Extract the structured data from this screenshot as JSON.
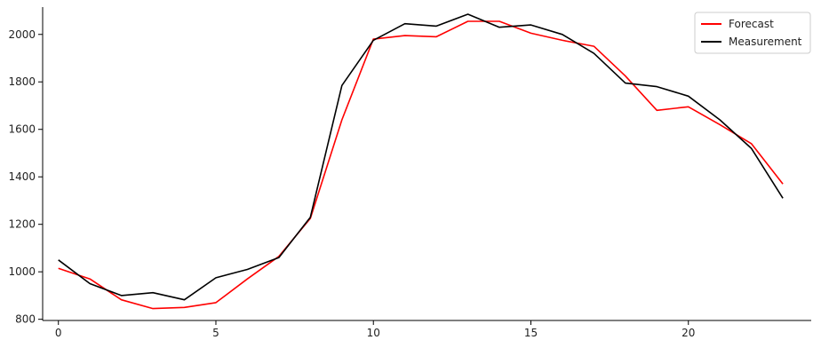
{
  "chart_data": {
    "type": "line",
    "title": "",
    "xlabel": "",
    "ylabel": "",
    "x": [
      0,
      1,
      2,
      3,
      4,
      5,
      6,
      7,
      8,
      9,
      10,
      11,
      12,
      13,
      14,
      15,
      16,
      17,
      18,
      19,
      20,
      21,
      22,
      23
    ],
    "xlim": [
      -0.5,
      23.9
    ],
    "ylim": [
      795,
      2115
    ],
    "xticks": [
      0,
      5,
      10,
      15,
      20
    ],
    "xtick_labels": [
      "0",
      "5",
      "10",
      "15",
      "20"
    ],
    "yticks": [
      800,
      1000,
      1200,
      1400,
      1600,
      1800,
      2000
    ],
    "ytick_labels": [
      "800",
      "1000",
      "1200",
      "1400",
      "1600",
      "1800",
      "2000"
    ],
    "grid": false,
    "legend_position": "top-right",
    "series": [
      {
        "name": "Forecast",
        "color": "#ff0000",
        "values": [
          1015,
          970,
          882,
          845,
          850,
          870,
          970,
          1065,
          1225,
          1640,
          1980,
          1995,
          1990,
          2055,
          2055,
          2005,
          1975,
          1950,
          1825,
          1680,
          1695,
          1620,
          1540,
          1370
        ]
      },
      {
        "name": "Measurement",
        "color": "#000000",
        "values": [
          1050,
          950,
          900,
          912,
          882,
          975,
          1010,
          1060,
          1230,
          1785,
          1975,
          2045,
          2035,
          2085,
          2030,
          2040,
          2000,
          1920,
          1795,
          1780,
          1740,
          1640,
          1520,
          1310
        ]
      }
    ]
  }
}
